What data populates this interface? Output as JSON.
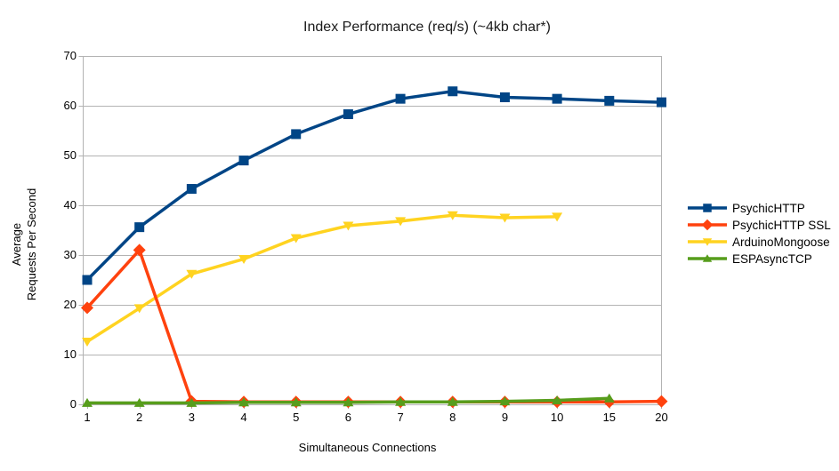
{
  "chart_data": {
    "type": "line",
    "title": "Index Performance (req/s) (~4kb char*)",
    "xlabel": "Simultaneous Connections",
    "ylabel": [
      "Average",
      "Requests Per Second"
    ],
    "categories": [
      "1",
      "2",
      "3",
      "4",
      "5",
      "6",
      "7",
      "8",
      "9",
      "10",
      "15",
      "20"
    ],
    "y_ticks": [
      0,
      10,
      20,
      30,
      40,
      50,
      60,
      70
    ],
    "ylim": [
      0,
      70
    ],
    "grid": "horizontal",
    "gridline_color": "#b3b3b3",
    "legend_position": "right",
    "series": [
      {
        "name": "PsychicHTTP",
        "color": "#004586",
        "marker": "square",
        "values": [
          25.0,
          35.6,
          43.3,
          49.0,
          54.3,
          58.3,
          61.4,
          62.9,
          61.7,
          61.4,
          61.0,
          60.7
        ]
      },
      {
        "name": "PsychicHTTP SSL",
        "color": "#ff420e",
        "marker": "diamond",
        "values": [
          19.4,
          31.0,
          0.6,
          0.5,
          0.5,
          0.5,
          0.5,
          0.5,
          0.5,
          0.5,
          0.5,
          0.6
        ]
      },
      {
        "name": "ArduinoMongoose",
        "color": "#ffd320",
        "marker": "triangle-down",
        "values": [
          12.6,
          19.3,
          26.2,
          29.2,
          33.4,
          35.9,
          36.8,
          38.0,
          37.5,
          37.7,
          null,
          null
        ]
      },
      {
        "name": "ESPAsyncTCP",
        "color": "#579d1c",
        "marker": "triangle-up",
        "values": [
          0.3,
          0.3,
          0.3,
          0.4,
          0.4,
          0.4,
          0.5,
          0.5,
          0.6,
          0.8,
          1.2,
          null
        ]
      }
    ]
  }
}
